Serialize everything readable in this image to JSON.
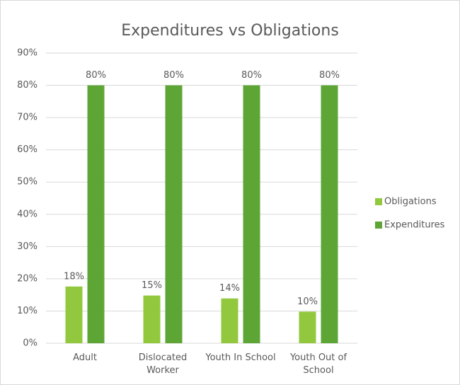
{
  "chart_data": {
    "type": "bar",
    "title": "Expenditures vs Obligations",
    "categories": [
      "Adult",
      "Dislocated Worker",
      "Youth In School",
      "Youth Out of School"
    ],
    "series": [
      {
        "name": "Obligations",
        "color": "#92c83e",
        "values": [
          17.6,
          14.8,
          13.9,
          9.8
        ],
        "value_labels": [
          "18%",
          "15%",
          "14%",
          "10%"
        ]
      },
      {
        "name": "Expenditures",
        "color": "#5da636",
        "values": [
          80,
          80,
          80,
          80
        ],
        "value_labels": [
          "80%",
          "80%",
          "80%",
          "80%"
        ]
      }
    ],
    "ylim": [
      0,
      90
    ],
    "yticks": [
      {
        "value": 0,
        "label": "0%"
      },
      {
        "value": 10,
        "label": "10%"
      },
      {
        "value": 20,
        "label": "20%"
      },
      {
        "value": 30,
        "label": "30%"
      },
      {
        "value": 40,
        "label": "40%"
      },
      {
        "value": 50,
        "label": "50%"
      },
      {
        "value": 60,
        "label": "60%"
      },
      {
        "value": 70,
        "label": "70%"
      },
      {
        "value": 80,
        "label": "80%"
      },
      {
        "value": 90,
        "label": "90%"
      }
    ],
    "grid": true,
    "legend": "right"
  }
}
